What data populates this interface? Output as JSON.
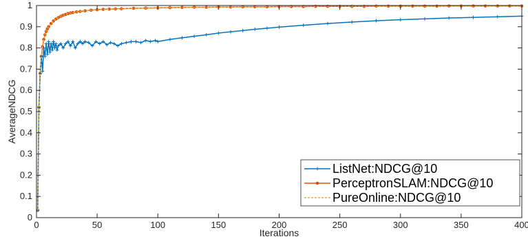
{
  "chart_data": {
    "type": "line",
    "xlabel": "Iterations",
    "ylabel": "AverageNDCG",
    "xlim": [
      0,
      400
    ],
    "ylim": [
      0,
      1
    ],
    "x_ticks": [
      "0",
      "50",
      "100",
      "150",
      "200",
      "250",
      "300",
      "350",
      "400"
    ],
    "y_ticks": [
      "0",
      "0.1",
      "0.2",
      "0.3",
      "0.4",
      "0.5",
      "0.6",
      "0.7",
      "0.8",
      "0.9",
      "1"
    ],
    "grid": false,
    "legend_position": "bottom-right",
    "series": [
      {
        "name": "ListNet:NDCG@10",
        "color": "#0072BD",
        "marker": "plus",
        "x": [
          1,
          2,
          3,
          4,
          5,
          6,
          7,
          8,
          9,
          10,
          11,
          12,
          13,
          14,
          15,
          16,
          17,
          18,
          20,
          22,
          24,
          26,
          28,
          30,
          32,
          34,
          36,
          38,
          40,
          43,
          46,
          49,
          52,
          55,
          58,
          61,
          64,
          67,
          70,
          74,
          78,
          82,
          86,
          90,
          94,
          98,
          100,
          110,
          120,
          130,
          140,
          150,
          160,
          170,
          180,
          190,
          200,
          220,
          240,
          260,
          280,
          300,
          320,
          340,
          360,
          380,
          400
        ],
        "y": [
          0.035,
          0.52,
          0.68,
          0.76,
          0.69,
          0.8,
          0.76,
          0.82,
          0.77,
          0.83,
          0.78,
          0.82,
          0.79,
          0.83,
          0.8,
          0.82,
          0.79,
          0.81,
          0.82,
          0.8,
          0.82,
          0.83,
          0.81,
          0.83,
          0.8,
          0.82,
          0.83,
          0.82,
          0.83,
          0.825,
          0.81,
          0.83,
          0.82,
          0.83,
          0.815,
          0.825,
          0.82,
          0.81,
          0.82,
          0.825,
          0.83,
          0.83,
          0.825,
          0.835,
          0.83,
          0.835,
          0.83,
          0.84,
          0.848,
          0.855,
          0.862,
          0.87,
          0.876,
          0.882,
          0.888,
          0.893,
          0.898,
          0.907,
          0.915,
          0.922,
          0.928,
          0.933,
          0.937,
          0.941,
          0.944,
          0.947,
          0.95
        ]
      },
      {
        "name": "PerceptronSLAM:NDCG@10",
        "color": "#D95319",
        "marker": "dot",
        "x": [
          1,
          2,
          3,
          4,
          5,
          6,
          7,
          8,
          9,
          10,
          12,
          14,
          16,
          18,
          20,
          22,
          24,
          26,
          28,
          30,
          33,
          36,
          40,
          45,
          50,
          55,
          60,
          65,
          70,
          80,
          90,
          100,
          110,
          120,
          130,
          140,
          150,
          160,
          170,
          180,
          190,
          200,
          210,
          220,
          230,
          240,
          250,
          260,
          270,
          280,
          290,
          300,
          310,
          320,
          330,
          340,
          350,
          360,
          370,
          380,
          390,
          400
        ],
        "y": [
          0.035,
          0.52,
          0.68,
          0.76,
          0.805,
          0.84,
          0.862,
          0.878,
          0.89,
          0.9,
          0.915,
          0.927,
          0.936,
          0.943,
          0.949,
          0.954,
          0.958,
          0.962,
          0.965,
          0.967,
          0.97,
          0.972,
          0.975,
          0.978,
          0.98,
          0.982,
          0.983,
          0.984,
          0.985,
          0.987,
          0.988,
          0.989,
          0.99,
          0.991,
          0.992,
          0.992,
          0.993,
          0.993,
          0.994,
          0.994,
          0.994,
          0.995,
          0.995,
          0.995,
          0.996,
          0.996,
          0.996,
          0.996,
          0.996,
          0.997,
          0.997,
          0.997,
          0.997,
          0.997,
          0.997,
          0.998,
          0.998,
          0.998,
          0.998,
          0.998,
          0.998,
          0.998
        ]
      },
      {
        "name": "PureOnline:NDCG@10",
        "color": "#EDB120",
        "marker": "none",
        "x": [
          1,
          2,
          3,
          4,
          5,
          6,
          7,
          8,
          9,
          10,
          12,
          14,
          16,
          18,
          20,
          22,
          24,
          26,
          28,
          30,
          33,
          36,
          40,
          45,
          50,
          55,
          60,
          65,
          70,
          80,
          90,
          100,
          120,
          140,
          160,
          180,
          200,
          250,
          300,
          350,
          400
        ],
        "y": [
          0.035,
          0.52,
          0.68,
          0.76,
          0.805,
          0.84,
          0.862,
          0.878,
          0.89,
          0.9,
          0.915,
          0.927,
          0.936,
          0.943,
          0.949,
          0.954,
          0.958,
          0.962,
          0.965,
          0.967,
          0.97,
          0.972,
          0.975,
          0.978,
          0.98,
          0.982,
          0.983,
          0.984,
          0.985,
          0.987,
          0.988,
          0.989,
          0.991,
          0.992,
          0.993,
          0.994,
          0.995,
          0.996,
          0.997,
          0.998,
          0.998
        ]
      }
    ]
  }
}
